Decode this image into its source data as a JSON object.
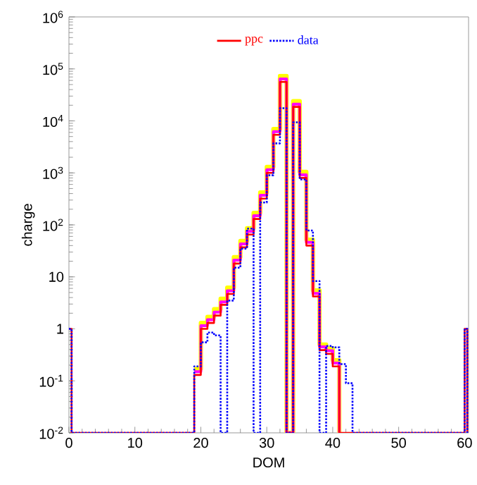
{
  "chart_data": {
    "type": "step",
    "xlabel": "DOM",
    "ylabel": "charge",
    "log": "y",
    "legend": "top",
    "xlim": [
      0,
      60.6
    ],
    "xticks": [
      0,
      10,
      20,
      30,
      40,
      50,
      60
    ],
    "ylim": [
      0.01,
      1000000
    ],
    "yticks": [
      {
        "value": 0.01,
        "label": "10$^{-2}$"
      },
      {
        "value": 0.1,
        "label": "10$^{-1}$"
      },
      1,
      10,
      {
        "value": 100,
        "label": "10$^{2}$"
      },
      {
        "value": 1000,
        "label": "10$^{3}$"
      },
      {
        "value": 10000,
        "label": "10$^{4}$"
      },
      {
        "value": 100000,
        "label": "10$^{5}$"
      },
      {
        "value": 1000000,
        "label": "10$^{6}$"
      }
    ],
    "series": [
      {
        "color": "#ffff00",
        "line_style": "solid",
        "x": [
          19,
          20,
          21,
          22,
          23,
          24,
          25,
          26,
          27,
          28,
          29,
          30,
          31,
          32,
          33,
          34,
          35,
          36,
          37,
          38,
          39,
          40,
          41
        ],
        "values": [
          0.17,
          1.3,
          1.7,
          2.4,
          3.8,
          6.2,
          24,
          49,
          86,
          170,
          420,
          1300,
          7000,
          73000,
          0.01,
          24000,
          1050,
          52,
          5.5,
          0.5,
          0.42,
          0.25,
          0.01
        ]
      },
      {
        "color": "#ff00ff",
        "line_style": "solid",
        "x": [
          19,
          20,
          21,
          22,
          23,
          24,
          25,
          26,
          27,
          28,
          29,
          30,
          31,
          32,
          33,
          34,
          35,
          36,
          37,
          38,
          39,
          40,
          41
        ],
        "values": [
          0.15,
          1.15,
          1.5,
          2.1,
          3.3,
          5.4,
          21,
          43,
          75,
          150,
          370,
          1150,
          6200,
          64000,
          0.01,
          21000,
          920,
          46,
          4.8,
          0.45,
          0.38,
          0.22,
          0.01
        ]
      },
      {
        "name": "ppc",
        "color": "#ff0000",
        "line_style": "solid",
        "x": [
          0,
          0.4,
          19,
          20,
          21,
          22,
          23,
          24,
          25,
          26,
          27,
          28,
          29,
          30,
          31,
          32,
          33,
          34,
          35,
          36,
          37,
          38,
          39,
          40,
          41,
          60,
          60.4
        ],
        "values": [
          1,
          0.01,
          0.13,
          1.0,
          1.3,
          1.8,
          2.9,
          4.7,
          18,
          37,
          65,
          130,
          320,
          1000,
          5400,
          56000,
          0.01,
          18600,
          800,
          40,
          4.2,
          0.39,
          0.33,
          0.19,
          0.01,
          1,
          0.01
        ]
      },
      {
        "name": "data",
        "color": "#0000ff",
        "line_style": "dotted",
        "x": [
          0,
          0.4,
          19,
          20,
          21,
          22,
          23,
          24,
          25,
          26,
          27,
          28,
          29,
          30,
          31,
          32,
          33,
          34,
          35,
          36,
          37,
          38,
          39,
          40,
          41,
          42,
          43,
          60,
          60.4
        ],
        "values": [
          1,
          0.01,
          0.19,
          0.55,
          0.85,
          0.75,
          0.01,
          3.5,
          15,
          35,
          85,
          0.01,
          270,
          900,
          3700,
          17500,
          0.01,
          9400,
          750,
          78,
          8.3,
          0.01,
          0.47,
          0.44,
          0.21,
          0.09,
          0.01,
          1,
          0.01
        ]
      }
    ]
  }
}
